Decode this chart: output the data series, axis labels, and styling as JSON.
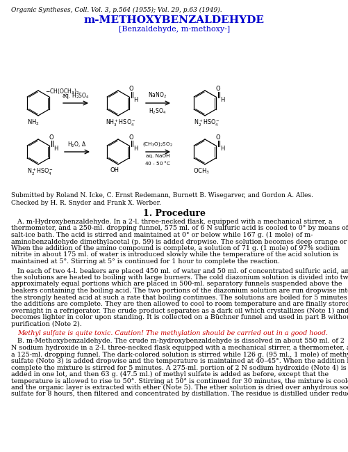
{
  "header_italic": "Organic Syntheses, Coll. Vol. 3, p.564 (1955); Vol. 29, p.63 (1949).",
  "title": "m-METHOXYBENZALDEHYDE",
  "subtitle": "[Benzaldehyde, m-methoxy-]",
  "submitted": "Submitted by Roland N. Icke, C. Ernst Redemann, Burnett B. Wisegarver, and Gordon A. Alles.",
  "checked": "Checked by H. R. Snyder and Frank X. Werber.",
  "section_title": "1. Procedure",
  "warning": "Methyl sulfate is quite toxic. Caution! The methylation should be carried out in a good hood.",
  "blue": "#0000CD",
  "red_italic": "#CC0000",
  "black": "#000000",
  "bg": "#FFFFFF",
  "para_A": "   A. m-Hydroxybenzaldehyde. In a 2-l. three-necked flask, equipped with a mechanical stirrer, a thermometer, and a 250-ml. dropping funnel, 575 ml. of 6 N sulfuric acid is cooled to 0° by means of a salt-ice bath. The acid is stirred and maintained at 0° or below while 167 g. (1 mole) of m-aminobenzaldehyde dimethylacetal (p. 59) is added dropwise. The solution becomes deep orange or red. When the addition of the amino compound is complete, a solution of 71 g. (1 mole) of 97% sodium nitrite in about 175 ml. of water is introduced slowly while the temperature of the acid solution is maintained at 5°. Stirring at 5° is continued for 1 hour to complete the reaction.",
  "para_B": "   In each of two 4-l. beakers are placed 450 ml. of water and 50 ml. of concentrated sulfuric acid, and the solutions are heated to boiling with large burners. The cold diazonium solution is divided into two approximately equal portions which are placed in 500-ml. separatory funnels suspended above the beakers containing the boiling acid. The two portions of the diazonium solution are run dropwise into the strongly heated acid at such a rate that boiling continues. The solutions are boiled for 5 minutes after the additions are complete. They are then allowed to cool to room temperature and are finally stored overnight in a refrigerator. The crude product separates as a dark oil which crystallizes (Note 1) and becomes lighter in color upon standing. It is collected on a Büchner funnel and used in part B without purification (Note 2).",
  "para_C": "   B. m-Methoxybenzaldehyde. The crude m-hydroxybenzaldehyde is dissolved in about 550 ml. of 2 N sodium hydroxide in a 2-l. three-necked flask equipped with a mechanical stirrer, a thermometer, and a 125-ml. dropping funnel. The dark-colored solution is stirred while 126 g. (95 ml., 1 mole) of methyl sulfate (Note 3) is added dropwise and the temperature is maintained at 40–45°. When the addition is complete the mixture is stirred for 5 minutes. A 275-ml. portion of 2 N sodium hydroxide (Note 4) is added in one lot, and then 63 g. (47.5 ml.) of methyl sulfate is added as before, except that the temperature is allowed to rise to 50°. Stirring at 50° is continued for 30 minutes, the mixture is cooled, and the organic layer is extracted with ether (Note 5). The ether solution is dried over anhydrous sodium sulfate for 8 hours, then filtered and concentrated by distillation. The residue is distilled under reduced"
}
